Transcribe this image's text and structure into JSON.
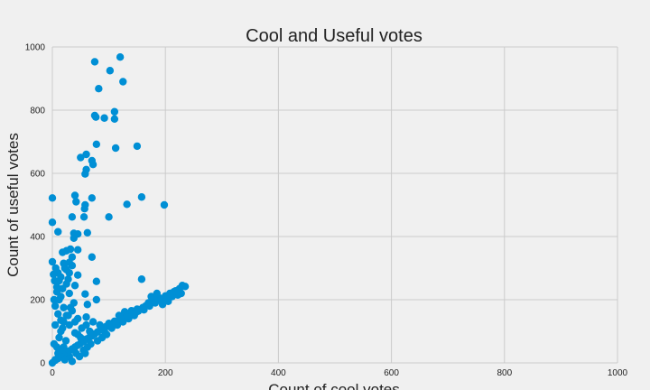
{
  "chart_data": {
    "type": "scatter",
    "title": "Cool and Useful votes",
    "xlabel": "Count of cool votes",
    "ylabel": "Count of useful votes",
    "xlim": [
      0,
      1000
    ],
    "ylim": [
      0,
      1000
    ],
    "xticks": [
      0,
      200,
      400,
      600,
      800,
      1000
    ],
    "yticks": [
      0,
      200,
      400,
      600,
      800,
      1000
    ],
    "grid": true,
    "marker_color": "#008fd5",
    "background_color": "#f0f0f0",
    "grid_color": "#cbcbcb",
    "series": [
      {
        "points": [
          [
            75,
            953
          ],
          [
            120,
            968
          ],
          [
            102,
            925
          ],
          [
            82,
            868
          ],
          [
            125,
            890
          ],
          [
            110,
            795
          ],
          [
            75,
            783
          ],
          [
            92,
            775
          ],
          [
            110,
            772
          ],
          [
            77,
            778
          ],
          [
            112,
            680
          ],
          [
            150,
            686
          ],
          [
            78,
            692
          ],
          [
            60,
            660
          ],
          [
            50,
            650
          ],
          [
            70,
            640
          ],
          [
            72,
            628
          ],
          [
            60,
            612
          ],
          [
            58,
            598
          ],
          [
            158,
            525
          ],
          [
            0,
            522
          ],
          [
            40,
            530
          ],
          [
            70,
            522
          ],
          [
            42,
            510
          ],
          [
            58,
            500
          ],
          [
            57,
            488
          ],
          [
            132,
            502
          ],
          [
            198,
            500
          ],
          [
            0,
            445
          ],
          [
            35,
            462
          ],
          [
            56,
            462
          ],
          [
            100,
            462
          ],
          [
            10,
            415
          ],
          [
            38,
            410
          ],
          [
            45,
            408
          ],
          [
            62,
            412
          ],
          [
            38,
            395
          ],
          [
            25,
            355
          ],
          [
            32,
            360
          ],
          [
            45,
            358
          ],
          [
            18,
            350
          ],
          [
            35,
            335
          ],
          [
            70,
            335
          ],
          [
            0,
            320
          ],
          [
            20,
            315
          ],
          [
            30,
            318
          ],
          [
            35,
            308
          ],
          [
            22,
            300
          ],
          [
            25,
            295
          ],
          [
            45,
            278
          ],
          [
            30,
            285
          ],
          [
            10,
            285
          ],
          [
            15,
            272
          ],
          [
            28,
            265
          ],
          [
            12,
            260
          ],
          [
            25,
            250
          ],
          [
            40,
            245
          ],
          [
            18,
            235
          ],
          [
            8,
            225
          ],
          [
            30,
            220
          ],
          [
            58,
            218
          ],
          [
            78,
            258
          ],
          [
            158,
            265
          ],
          [
            62,
            185
          ],
          [
            78,
            200
          ],
          [
            5,
            180
          ],
          [
            20,
            175
          ],
          [
            35,
            165
          ],
          [
            10,
            155
          ],
          [
            25,
            150
          ],
          [
            45,
            140
          ],
          [
            15,
            135
          ],
          [
            3,
            200
          ],
          [
            5,
            120
          ],
          [
            30,
            120
          ],
          [
            60,
            120
          ],
          [
            15,
            100
          ],
          [
            40,
            95
          ],
          [
            3,
            60
          ],
          [
            10,
            30
          ],
          [
            20,
            50
          ],
          [
            30,
            20
          ],
          [
            0,
            0
          ],
          [
            5,
            10
          ],
          [
            12,
            80
          ],
          [
            230,
            245
          ],
          [
            235,
            242
          ],
          [
            225,
            235
          ],
          [
            228,
            220
          ],
          [
            215,
            225
          ],
          [
            210,
            215
          ],
          [
            200,
            212
          ],
          [
            190,
            205
          ],
          [
            180,
            200
          ],
          [
            175,
            210
          ],
          [
            185,
            220
          ],
          [
            170,
            190
          ],
          [
            165,
            180
          ],
          [
            160,
            175
          ],
          [
            150,
            170
          ],
          [
            140,
            165
          ],
          [
            130,
            155
          ],
          [
            120,
            145
          ],
          [
            110,
            132
          ],
          [
            100,
            125
          ],
          [
            95,
            115
          ],
          [
            90,
            112
          ],
          [
            85,
            105
          ],
          [
            80,
            98
          ],
          [
            75,
            92
          ],
          [
            70,
            85
          ],
          [
            65,
            80
          ],
          [
            60,
            75
          ],
          [
            55,
            68
          ],
          [
            50,
            62
          ],
          [
            45,
            56
          ],
          [
            40,
            50
          ],
          [
            35,
            44
          ],
          [
            30,
            38
          ],
          [
            25,
            32
          ],
          [
            20,
            26
          ],
          [
            15,
            20
          ],
          [
            10,
            14
          ],
          [
            5,
            8
          ],
          [
            195,
            185
          ],
          [
            205,
            195
          ],
          [
            145,
            150
          ],
          [
            135,
            140
          ],
          [
            125,
            130
          ],
          [
            115,
            120
          ],
          [
            105,
            110
          ],
          [
            118,
            150
          ],
          [
            128,
            162
          ],
          [
            138,
            158
          ],
          [
            148,
            160
          ],
          [
            160,
            170
          ],
          [
            172,
            180
          ],
          [
            182,
            190
          ],
          [
            202,
            205
          ],
          [
            212,
            210
          ],
          [
            222,
            215
          ],
          [
            218,
            228
          ],
          [
            208,
            220
          ],
          [
            192,
            198
          ],
          [
            92,
            100
          ],
          [
            102,
            118
          ],
          [
            112,
            128
          ],
          [
            122,
            138
          ],
          [
            132,
            148
          ],
          [
            142,
            154
          ],
          [
            152,
            164
          ],
          [
            162,
            168
          ],
          [
            50,
            80
          ],
          [
            45,
            90
          ],
          [
            20,
            130
          ],
          [
            28,
            150
          ],
          [
            32,
            175
          ],
          [
            38,
            190
          ],
          [
            15,
            210
          ],
          [
            8,
            240
          ],
          [
            4,
            260
          ],
          [
            2,
            280
          ],
          [
            6,
            300
          ],
          [
            12,
            200
          ],
          [
            18,
            110
          ],
          [
            24,
            70
          ],
          [
            8,
            50
          ],
          [
            14,
            40
          ],
          [
            22,
            10
          ],
          [
            35,
            5
          ],
          [
            42,
            30
          ],
          [
            55,
            40
          ],
          [
            62,
            50
          ],
          [
            48,
            20
          ],
          [
            58,
            30
          ],
          [
            68,
            60
          ],
          [
            80,
            70
          ],
          [
            88,
            80
          ],
          [
            96,
            90
          ],
          [
            66,
            100
          ],
          [
            52,
            110
          ],
          [
            40,
            130
          ],
          [
            60,
            145
          ],
          [
            72,
            130
          ],
          [
            84,
            120
          ]
        ]
      }
    ]
  }
}
